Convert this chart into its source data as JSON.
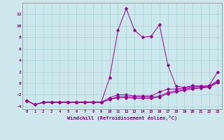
{
  "xlabel": "Windchill (Refroidissement éolien,°C)",
  "hours": [
    0,
    1,
    2,
    3,
    4,
    5,
    6,
    7,
    8,
    9,
    10,
    11,
    12,
    13,
    14,
    15,
    16,
    17,
    18,
    19,
    20,
    21,
    22,
    23
  ],
  "line1": [
    -3.0,
    -3.7,
    -3.3,
    -3.3,
    -3.3,
    -3.3,
    -3.3,
    -3.3,
    -3.3,
    -3.3,
    1.0,
    9.2,
    13.0,
    9.2,
    8.0,
    8.2,
    10.2,
    3.2,
    -0.5,
    -0.7,
    -0.4,
    -0.5,
    -0.4,
    2.0
  ],
  "line2": [
    -3.0,
    -3.7,
    -3.3,
    -3.3,
    -3.3,
    -3.3,
    -3.3,
    -3.3,
    -3.3,
    -3.3,
    -2.5,
    -2.0,
    -2.0,
    -2.2,
    -2.2,
    -2.2,
    -1.5,
    -1.0,
    -1.0,
    -0.8,
    -0.6,
    -0.5,
    -0.5,
    0.5
  ],
  "line3": [
    -3.0,
    -3.7,
    -3.3,
    -3.3,
    -3.3,
    -3.3,
    -3.3,
    -3.3,
    -3.3,
    -3.3,
    -2.8,
    -2.3,
    -2.3,
    -2.4,
    -2.4,
    -2.4,
    -2.2,
    -1.6,
    -1.3,
    -1.0,
    -0.8,
    -0.7,
    -0.6,
    0.3
  ],
  "line4": [
    -3.0,
    -3.7,
    -3.3,
    -3.3,
    -3.3,
    -3.3,
    -3.3,
    -3.3,
    -3.3,
    -3.3,
    -2.8,
    -2.5,
    -2.5,
    -2.6,
    -2.6,
    -2.6,
    -2.4,
    -1.8,
    -1.5,
    -1.2,
    -1.0,
    -0.8,
    -0.7,
    0.1
  ],
  "line_color": "#990099",
  "bg_color": "#cce8ec",
  "grid_color": "#aad4d8",
  "ylim": [
    -4.5,
    14.0
  ],
  "yticks": [
    -4,
    -2,
    0,
    2,
    4,
    6,
    8,
    10,
    12
  ],
  "font_color": "#800080"
}
